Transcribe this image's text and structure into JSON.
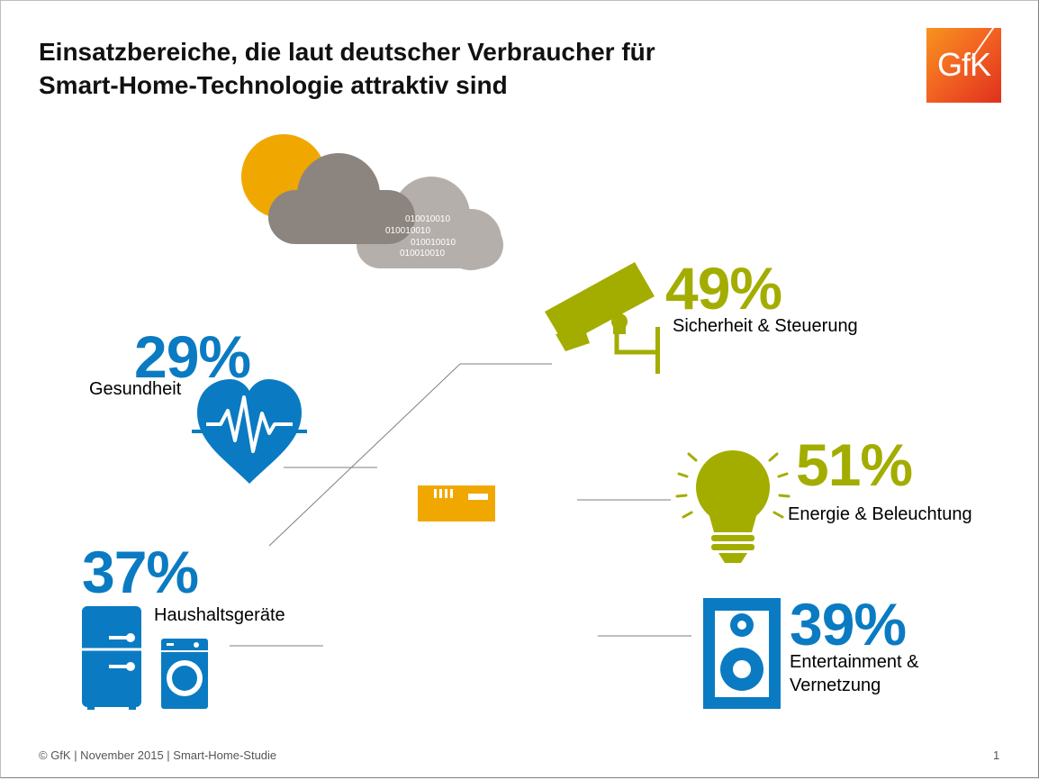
{
  "title_lines": [
    "Einsatzbereiche, die laut deutscher Verbraucher für",
    "Smart-Home-Technologie attraktiv sind"
  ],
  "logo": {
    "text": "GfK",
    "color": "#f26522"
  },
  "binary_lines": [
    "010010010",
    "010010010",
    "010010010",
    "010010010"
  ],
  "footer": "© GfK | November 2015 | Smart-Home-Studie",
  "page_number": "1",
  "colors": {
    "olive": "#a3ad00",
    "blue": "#0a7bc2",
    "sun": "#f0a800",
    "cloud_dark": "#8c847f",
    "cloud_light": "#b5afac",
    "house": "#f0a800"
  },
  "icons": [
    "sun-icon",
    "cloud-icon",
    "security-camera-icon",
    "heart-pulse-icon",
    "light-bulb-icon",
    "fridge-icon",
    "washing-machine-icon",
    "speaker-icon",
    "house-icon"
  ],
  "chart_data": {
    "type": "table",
    "title": "Einsatzbereiche, die laut deutscher Verbraucher für Smart-Home-Technologie attraktiv sind",
    "unit": "%",
    "categories": [
      "Sicherheit & Steuerung",
      "Gesundheit",
      "Energie & Beleuchtung",
      "Haushaltsgeräte",
      "Entertainment & Vernetzung"
    ],
    "values": [
      49,
      29,
      51,
      37,
      39
    ],
    "labels": [
      "49%",
      "29%",
      "51%",
      "37%",
      "39%"
    ],
    "label_lines": [
      [
        "Sicherheit & Steuerung"
      ],
      [
        "Gesundheit"
      ],
      [
        "Energie & Beleuchtung"
      ],
      [
        "Haushaltsgeräte"
      ],
      [
        "Entertainment &",
        "Vernetzung"
      ]
    ]
  }
}
